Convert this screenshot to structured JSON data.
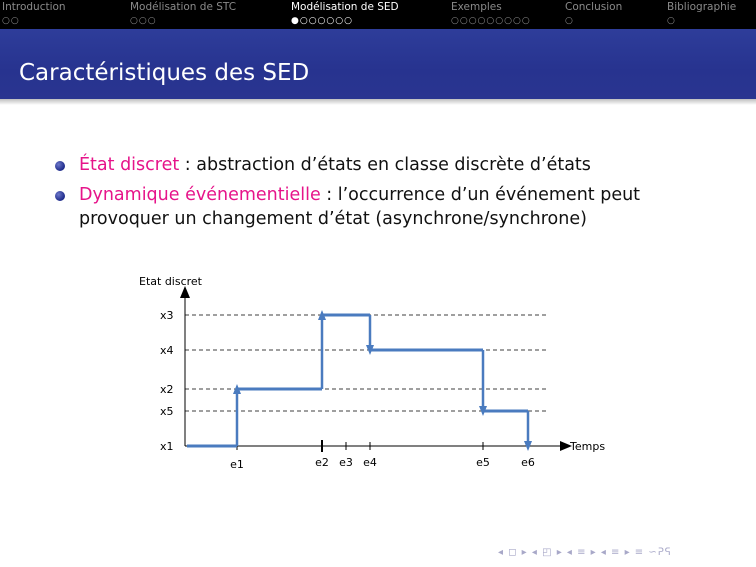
{
  "nav": {
    "sections": [
      {
        "label": "Introduction",
        "dots": "○○",
        "active": false
      },
      {
        "label": "Modélisation de STC",
        "dots": "○○○",
        "active": false
      },
      {
        "label": "Modélisation de SED",
        "dots": "●○○○○○○",
        "active": true
      },
      {
        "label": "Exemples",
        "dots": "○○○○○○○○○",
        "active": false
      },
      {
        "label": "Conclusion",
        "dots": "○",
        "active": false
      },
      {
        "label": "Bibliographie",
        "dots": "○",
        "active": false
      }
    ]
  },
  "frame": {
    "title": "Caractéristiques des SED"
  },
  "bullets": [
    {
      "term": "État discret",
      "rest": " : abstraction d’états en classe discrète d’états"
    },
    {
      "term": "Dynamique événementielle",
      "rest": " : l’occurrence d’un événement peut provoquer un changement d’état (asynchrone/synchrone)"
    }
  ],
  "colors": {
    "accent": "#e6148a",
    "title_bar": "#2e3d9a",
    "signal": "#4a7bbf"
  },
  "chart_data": {
    "type": "line",
    "ylabel": "Etat discret",
    "xlabel": "Temps",
    "y_states": [
      "x1",
      "x5",
      "x2",
      "x4",
      "x3"
    ],
    "events": [
      "e1",
      "e2",
      "e3",
      "e4",
      "e5",
      "e6"
    ],
    "trajectory": [
      {
        "from_event": null,
        "state": "x1"
      },
      {
        "from_event": "e1",
        "state": "x2"
      },
      {
        "from_event": "e2",
        "state": "x3"
      },
      {
        "from_event": "e4",
        "state": "x4"
      },
      {
        "from_event": "e5",
        "state": "x5"
      },
      {
        "from_event": "e6",
        "state": "x1"
      }
    ],
    "grid": true
  },
  "footer": {
    "nav_symbols": "◂ ◻ ▸ ◂ ◰ ▸ ◂ ≡ ▸ ◂ ≡ ▸  ≡  ∽ᕈᕋ"
  }
}
